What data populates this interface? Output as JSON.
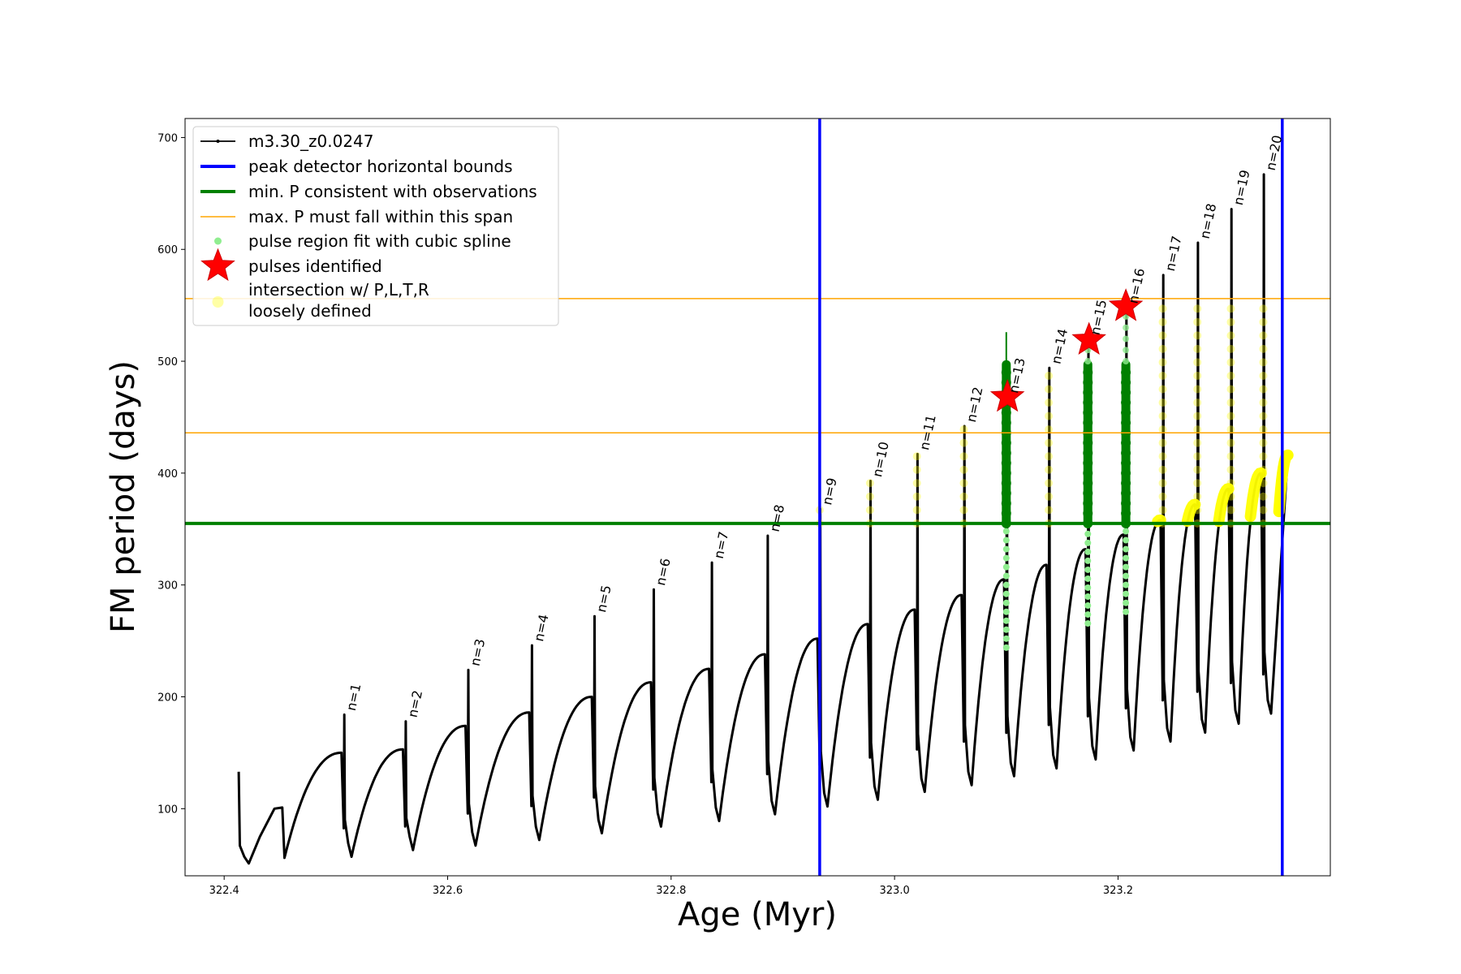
{
  "chart_data": {
    "type": "line",
    "xlabel": "Age (Myr)",
    "ylabel": "FM period (days)",
    "xlim": [
      322.365,
      323.39
    ],
    "ylim": [
      40,
      717
    ],
    "x_ticks": [
      322.4,
      322.6,
      322.8,
      323.0,
      323.2
    ],
    "x_tick_labels": [
      "322.4",
      "322.6",
      "322.8",
      "323.0",
      "323.2"
    ],
    "y_ticks": [
      100,
      200,
      300,
      400,
      500,
      600,
      700
    ],
    "y_tick_labels": [
      "100",
      "200",
      "300",
      "400",
      "500",
      "600",
      "700"
    ],
    "grid": false,
    "legend_position": "top-left",
    "colors": {
      "model_track": "#000000",
      "bounds": "#0000ff",
      "min_period": "#008000",
      "max_period_span": "#ffa500",
      "spline_fit": "#90ee90",
      "spline_fit_dark": "#008000",
      "pulses": "#ff0000",
      "loosely_defined": "#ffff00"
    },
    "legend": [
      {
        "label": "m3.30_z0.0247",
        "kind": "line-dots",
        "color": "#000000"
      },
      {
        "label": "peak detector horizontal bounds",
        "kind": "line-thick",
        "color": "#0000ff"
      },
      {
        "label": "min. P consistent with observations",
        "kind": "line-thick",
        "color": "#008000"
      },
      {
        "label": "max. P must fall within this span",
        "kind": "line-thin",
        "color": "#ffa500"
      },
      {
        "label": "pulse region fit with cubic spline",
        "kind": "dot",
        "color": "#90ee90"
      },
      {
        "label": "pulses identified",
        "kind": "star",
        "color": "#ff0000"
      },
      {
        "label": "intersection w/ P,L,T,R",
        "kind": "none",
        "color": "#ffff00"
      },
      {
        "label": "loosely defined",
        "kind": "yellow-dot",
        "color": "#ffff00"
      }
    ],
    "vertical_bounds_x": [
      322.933,
      323.347
    ],
    "min_period_y": 355,
    "max_period_span_y": [
      436,
      556
    ],
    "pulse_labels": [
      "n=1",
      "n=2",
      "n=3",
      "n=4",
      "n=5",
      "n=6",
      "n=7",
      "n=8",
      "n=9",
      "n=10",
      "n=11",
      "n=12",
      "n=13",
      "n=14",
      "n=15",
      "n=16",
      "n=17",
      "n=18",
      "n=19",
      "n=20"
    ],
    "pulses": [
      {
        "n": 1,
        "x": 322.507,
        "peak": 184,
        "pre": 150,
        "min": 57
      },
      {
        "n": 2,
        "x": 322.562,
        "peak": 178,
        "pre": 153,
        "min": 63
      },
      {
        "n": 3,
        "x": 322.618,
        "peak": 224,
        "pre": 174,
        "min": 67
      },
      {
        "n": 4,
        "x": 322.675,
        "peak": 246,
        "pre": 186,
        "min": 72
      },
      {
        "n": 5,
        "x": 322.731,
        "peak": 272,
        "pre": 200,
        "min": 78
      },
      {
        "n": 6,
        "x": 322.784,
        "peak": 296,
        "pre": 213,
        "min": 84
      },
      {
        "n": 7,
        "x": 322.836,
        "peak": 320,
        "pre": 225,
        "min": 89
      },
      {
        "n": 8,
        "x": 322.886,
        "peak": 344,
        "pre": 238,
        "min": 95
      },
      {
        "n": 9,
        "x": 322.933,
        "peak": 368,
        "pre": 252,
        "min": 102
      },
      {
        "n": 10,
        "x": 322.978,
        "peak": 393,
        "pre": 265,
        "min": 108
      },
      {
        "n": 11,
        "x": 323.02,
        "peak": 417,
        "pre": 278,
        "min": 115
      },
      {
        "n": 12,
        "x": 323.062,
        "peak": 442,
        "pre": 291,
        "min": 121
      },
      {
        "n": 13,
        "x": 323.1,
        "peak": 468,
        "pre": 305,
        "min": 129
      },
      {
        "n": 14,
        "x": 323.138,
        "peak": 494,
        "pre": 318,
        "min": 136
      },
      {
        "n": 15,
        "x": 323.173,
        "peak": 520,
        "pre": 332,
        "min": 144
      },
      {
        "n": 16,
        "x": 323.207,
        "peak": 548,
        "pre": 345,
        "min": 152
      },
      {
        "n": 17,
        "x": 323.24,
        "peak": 577,
        "pre": 358,
        "min": 160
      },
      {
        "n": 18,
        "x": 323.271,
        "peak": 606,
        "pre": 372,
        "min": 168
      },
      {
        "n": 19,
        "x": 323.301,
        "peak": 636,
        "pre": 386,
        "min": 176
      },
      {
        "n": 20,
        "x": 323.33,
        "peak": 667,
        "pre": 400,
        "min": 185
      }
    ],
    "start_segment": {
      "x": [
        322.413,
        322.414,
        322.418,
        322.422,
        322.432,
        322.445,
        322.452
      ],
      "y": [
        133,
        67,
        57,
        51,
        75,
        100,
        101
      ]
    },
    "end_point": {
      "x": 323.352,
      "y": 416
    },
    "pulses_identified": [
      {
        "x": 323.101,
        "y": 468
      },
      {
        "x": 323.174,
        "y": 519
      },
      {
        "x": 323.207,
        "y": 549
      }
    ],
    "spline_fit_pulses": [
      13,
      15,
      16
    ],
    "loosely_defined_pulses": [
      9,
      10,
      11,
      12,
      14,
      17,
      18,
      19,
      20
    ]
  }
}
